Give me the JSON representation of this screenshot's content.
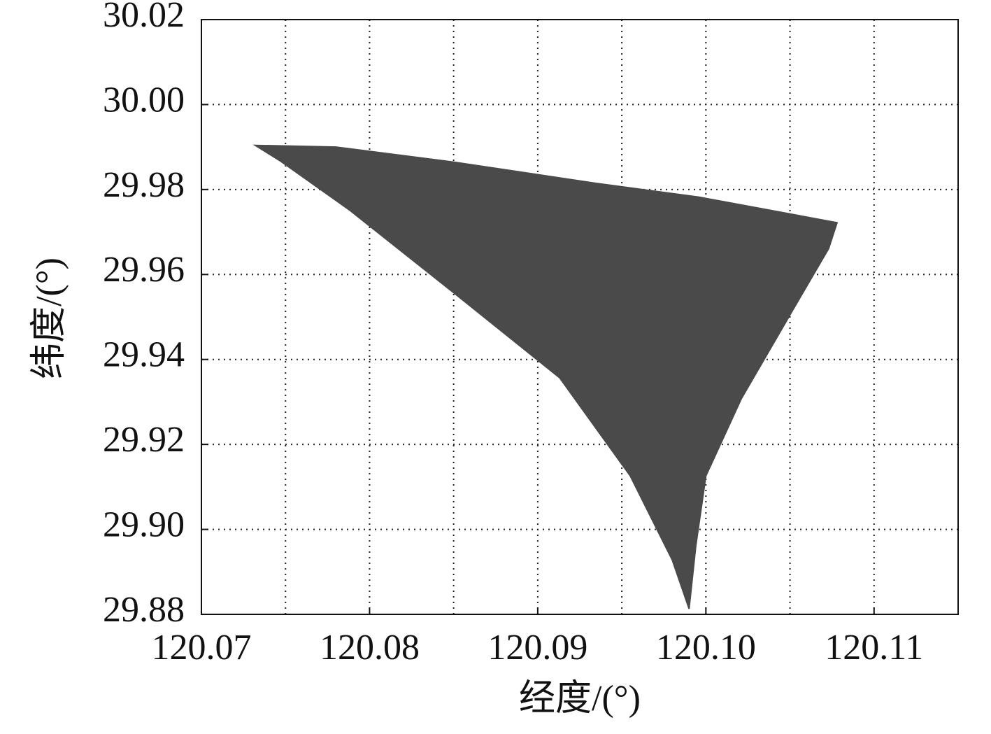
{
  "chart_data": {
    "type": "area",
    "x_label": "经度/(°)",
    "y_label": "纬度/(°)",
    "x": [
      120.0732,
      120.078,
      120.0851,
      120.0934,
      120.0996,
      120.1078,
      120.1073,
      120.105,
      120.1021,
      120.1,
      120.0994,
      120.099,
      120.098,
      120.0955,
      120.0913,
      120.0851,
      120.0788,
      120.0747
    ],
    "y": [
      29.9904,
      29.99,
      29.9864,
      29.9815,
      29.9782,
      29.9722,
      29.9661,
      29.9505,
      29.9307,
      29.9126,
      29.8961,
      29.8813,
      29.8928,
      29.9126,
      29.9357,
      29.9554,
      29.9752,
      29.9867
    ],
    "color": "#4a4a4a",
    "xlim": [
      120.07,
      120.115
    ],
    "ylim": [
      29.88,
      30.02
    ],
    "xticks": [
      120.07,
      120.08,
      120.09,
      {
        "value": 120.1,
        "label": "120.10"
      },
      120.11
    ],
    "xgrid": [
      120.075,
      120.08,
      120.085,
      120.09,
      120.095,
      120.1,
      120.105,
      120.11
    ],
    "yticks": [
      29.88,
      {
        "value": 29.9,
        "label": "29.90"
      },
      29.92,
      29.94,
      29.96,
      29.98,
      {
        "value": 30.0,
        "label": "30.00"
      },
      30.02
    ],
    "grid": true
  }
}
